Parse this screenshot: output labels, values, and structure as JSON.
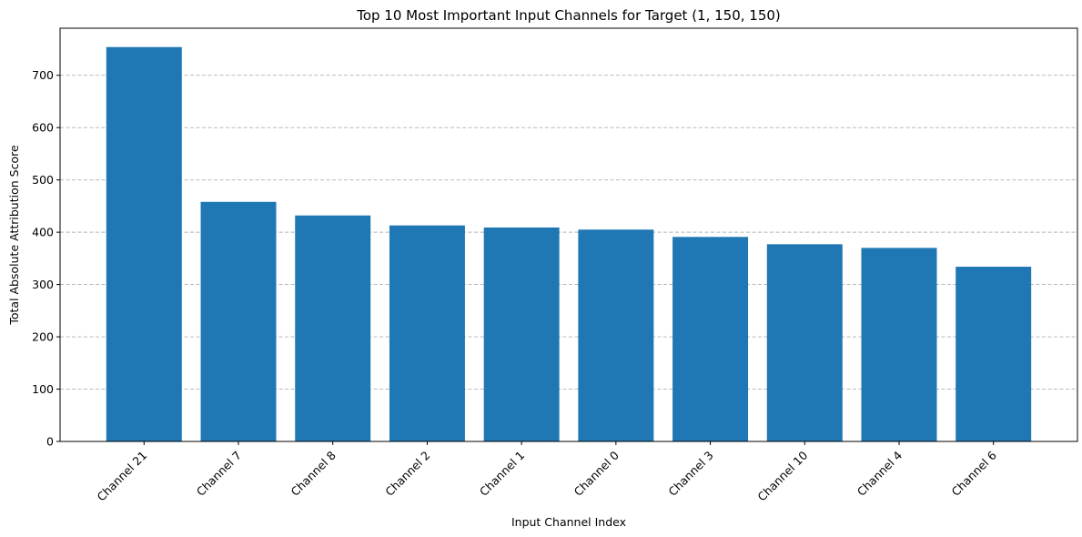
{
  "chart_data": {
    "type": "bar",
    "title": "Top 10 Most Important Input Channels for Target (1, 150, 150)",
    "xlabel": "Input Channel Index",
    "ylabel": "Total Absolute Attribution Score",
    "categories": [
      "Channel 21",
      "Channel 7",
      "Channel 8",
      "Channel 2",
      "Channel 1",
      "Channel 0",
      "Channel 3",
      "Channel 10",
      "Channel 4",
      "Channel 6"
    ],
    "values": [
      754,
      458,
      432,
      413,
      409,
      405,
      391,
      377,
      370,
      334
    ],
    "ylim": [
      0,
      790
    ],
    "yticks": [
      0,
      100,
      200,
      300,
      400,
      500,
      600,
      700
    ],
    "grid": "y-dashed",
    "bar_color": "#1f77b4"
  }
}
